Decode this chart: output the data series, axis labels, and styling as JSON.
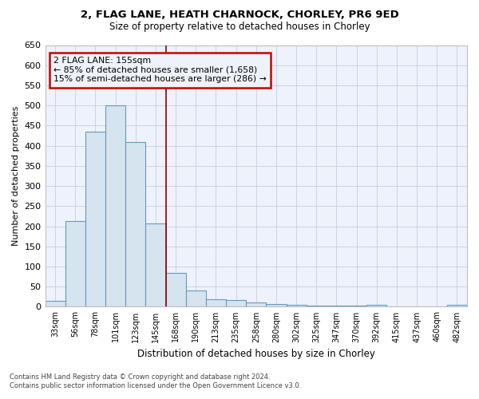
{
  "title1": "2, FLAG LANE, HEATH CHARNOCK, CHORLEY, PR6 9ED",
  "title2": "Size of property relative to detached houses in Chorley",
  "xlabel": "Distribution of detached houses by size in Chorley",
  "ylabel": "Number of detached properties",
  "footnote1": "Contains HM Land Registry data © Crown copyright and database right 2024.",
  "footnote2": "Contains public sector information licensed under the Open Government Licence v3.0.",
  "annotation_line1": "2 FLAG LANE: 155sqm",
  "annotation_line2": "← 85% of detached houses are smaller (1,658)",
  "annotation_line3": "15% of semi-detached houses are larger (286) →",
  "bar_color": "#d6e4f0",
  "bar_edge_color": "#6699bb",
  "marker_line_color": "#880000",
  "annotation_box_edge": "#cc0000",
  "background_color": "#ffffff",
  "plot_bg_color": "#eef2fa",
  "categories": [
    "33sqm",
    "56sqm",
    "78sqm",
    "101sqm",
    "123sqm",
    "145sqm",
    "168sqm",
    "190sqm",
    "213sqm",
    "235sqm",
    "258sqm",
    "280sqm",
    "302sqm",
    "325sqm",
    "347sqm",
    "370sqm",
    "392sqm",
    "415sqm",
    "437sqm",
    "460sqm",
    "482sqm"
  ],
  "values": [
    15,
    212,
    435,
    501,
    409,
    207,
    85,
    40,
    18,
    16,
    11,
    6,
    5,
    2,
    2,
    2,
    5,
    1,
    0,
    0,
    5
  ],
  "marker_bin_index": 5,
  "ylim": [
    0,
    650
  ],
  "yticks": [
    0,
    50,
    100,
    150,
    200,
    250,
    300,
    350,
    400,
    450,
    500,
    550,
    600,
    650
  ]
}
